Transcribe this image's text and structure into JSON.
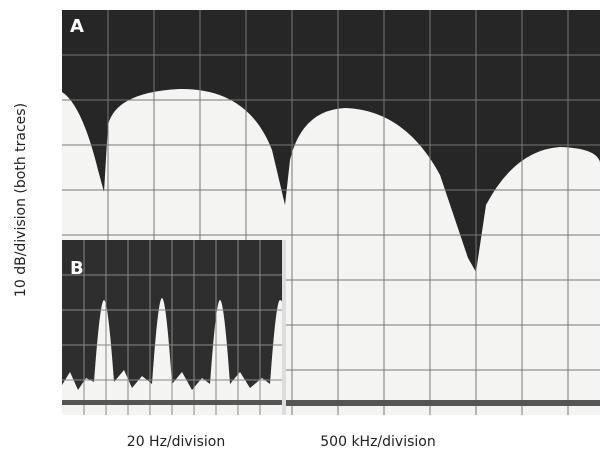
{
  "panel_a": {
    "label": "A"
  },
  "panel_b": {
    "label": "B"
  },
  "y_axis_label": "10 dB/division (both traces)",
  "x_axis_labels": [
    "20 Hz/division",
    "500 kHz/division"
  ]
}
